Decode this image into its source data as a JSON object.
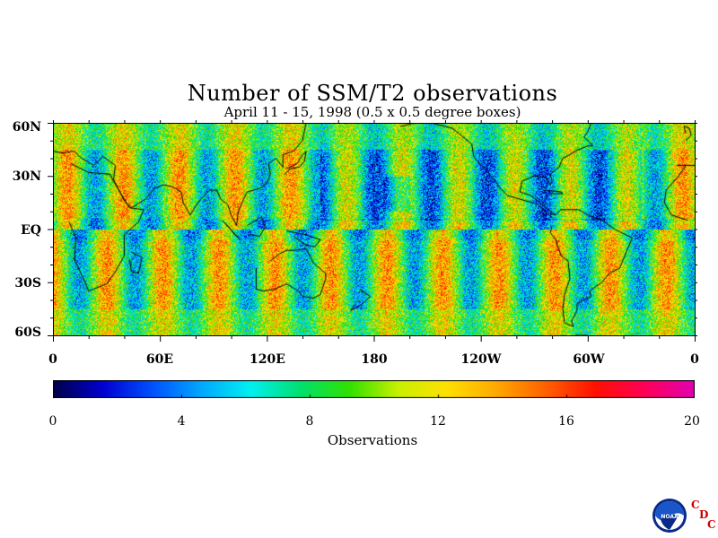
{
  "title": "Number of SSM/T2 observations",
  "subtitle": "April 11 - 15, 1998 (0.5 x 0.5 degree boxes)",
  "lat_labels": [
    "60N",
    "30N",
    "EQ",
    "30S",
    "60S"
  ],
  "lon_labels": [
    "0",
    "60E",
    "120E",
    "180",
    "120W",
    "60W",
    "0"
  ],
  "colorbar": {
    "title": "Observations",
    "tick_labels": [
      "0",
      "4",
      "8",
      "12",
      "16",
      "20"
    ],
    "range": [
      0,
      20
    ],
    "colors": [
      "#00004a",
      "#0000d0",
      "#0050ff",
      "#00a8ff",
      "#00f0f0",
      "#00e070",
      "#30e000",
      "#c8f000",
      "#ffe000",
      "#ffa800",
      "#ff6000",
      "#ff1000",
      "#ff0058",
      "#e000b0"
    ]
  },
  "logo": {
    "agency_text": "NOAA",
    "letters": [
      "C",
      "D",
      "C"
    ]
  }
}
